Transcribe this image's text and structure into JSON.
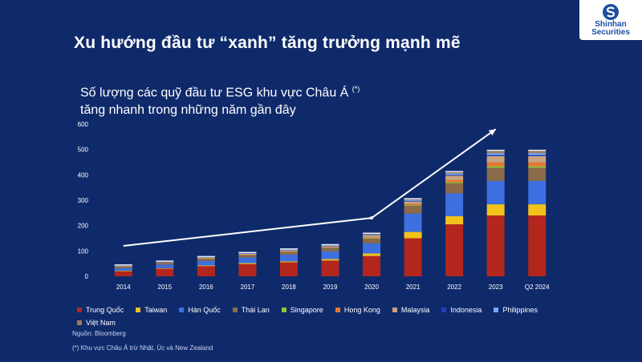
{
  "logo": {
    "text": "Shinhan\nSecurities"
  },
  "header": {
    "title": "Xu hướng đầu tư “xanh” tăng trưởng mạnh mẽ",
    "subtitle_line1": "Số lượng các quỹ đầu tư ESG khu vực Châu Á",
    "subtitle_marker": "(*)",
    "subtitle_line2": "tăng nhanh trong những năm gần đây"
  },
  "footer": {
    "source": "Nguồn: Bloomberg",
    "note": "(*) Khu vực Châu Á trừ Nhật, Úc và New Zealand"
  },
  "chart_data": {
    "type": "bar",
    "stacked": true,
    "title": "Số lượng các quỹ đầu tư ESG khu vực Châu Á",
    "xlabel": "",
    "ylabel": "",
    "ylim": [
      0,
      600
    ],
    "yticks": [
      0,
      100,
      200,
      300,
      400,
      500,
      600
    ],
    "categories": [
      "2014",
      "2015",
      "2016",
      "2017",
      "2018",
      "2019",
      "2020",
      "2021",
      "2022",
      "2023",
      "Q2 2024"
    ],
    "series": [
      {
        "name": "Trung Quốc",
        "color": "#b3261e",
        "values": [
          20,
          30,
          40,
          48,
          55,
          62,
          80,
          150,
          205,
          240,
          240
        ]
      },
      {
        "name": "Taiwan",
        "color": "#f2c21b",
        "values": [
          2,
          2,
          3,
          4,
          4,
          6,
          10,
          25,
          32,
          44,
          44
        ]
      },
      {
        "name": "Hàn Quốc",
        "color": "#3d6fe0",
        "values": [
          10,
          14,
          18,
          22,
          26,
          30,
          40,
          72,
          90,
          92,
          92
        ]
      },
      {
        "name": "Thái Lan",
        "color": "#8b6a4a",
        "values": [
          5,
          6,
          7,
          8,
          10,
          12,
          18,
          30,
          40,
          52,
          52
        ]
      },
      {
        "name": "Singapore",
        "color": "#8dc63f",
        "values": [
          1,
          1,
          1,
          1,
          1,
          1,
          2,
          3,
          4,
          6,
          6
        ]
      },
      {
        "name": "Hong Kong",
        "color": "#e8772e",
        "values": [
          1,
          1,
          2,
          2,
          2,
          2,
          3,
          5,
          8,
          14,
          14
        ]
      },
      {
        "name": "Malaysia",
        "color": "#c9a27e",
        "values": [
          2,
          2,
          3,
          4,
          5,
          6,
          8,
          10,
          18,
          26,
          26
        ]
      },
      {
        "name": "Indonesia",
        "color": "#1f3fbf",
        "values": [
          1,
          1,
          1,
          1,
          1,
          1,
          1,
          2,
          3,
          4,
          4
        ]
      },
      {
        "name": "Philippines",
        "color": "#7aa8f0",
        "values": [
          1,
          1,
          1,
          2,
          2,
          2,
          3,
          4,
          6,
          8,
          8
        ]
      },
      {
        "name": "Việt Nam",
        "color": "#9c7b5a",
        "values": [
          1,
          1,
          1,
          1,
          1,
          2,
          4,
          4,
          6,
          10,
          10
        ]
      }
    ],
    "trend_arrow": {
      "from": {
        "x": "2014",
        "y": 120
      },
      "mid": {
        "x": "2020",
        "y": 230
      },
      "to": {
        "x": "2023",
        "y": 580
      }
    }
  }
}
